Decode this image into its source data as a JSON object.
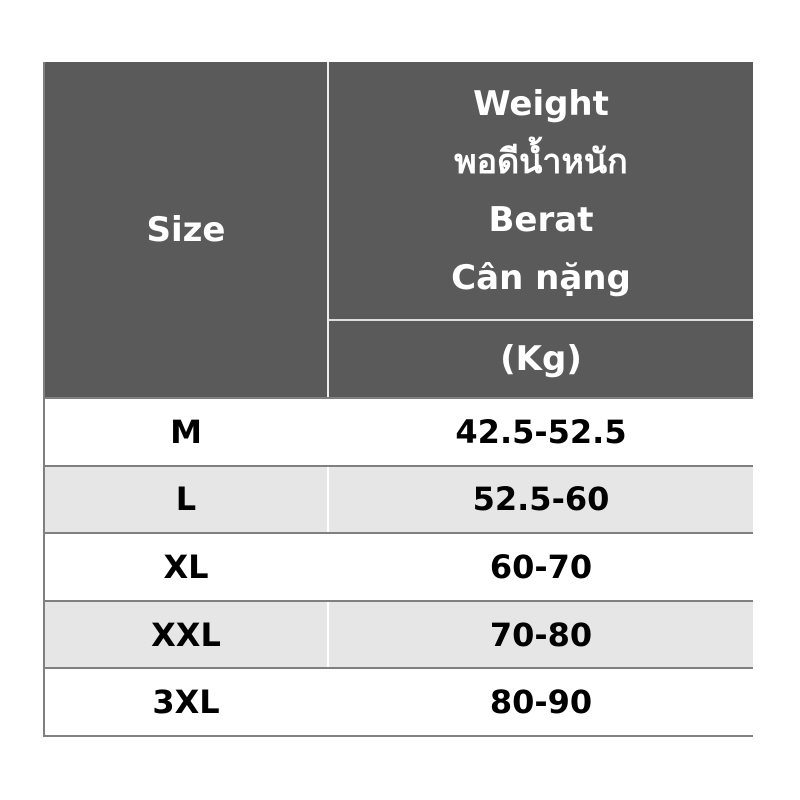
{
  "header": {
    "size_label": "Size",
    "weight_lines": [
      "Weight",
      "พอดีน้ำหนัก",
      "Berat",
      "Cân nặng"
    ],
    "unit": "(Kg)"
  },
  "rows": [
    {
      "size": "M",
      "weight": "42.5-52.5"
    },
    {
      "size": "L",
      "weight": "52.5-60"
    },
    {
      "size": "XL",
      "weight": "60-70"
    },
    {
      "size": "XXL",
      "weight": "70-80"
    },
    {
      "size": "3XL",
      "weight": "80-90"
    }
  ],
  "colors": {
    "header_bg": "#5a5a5a",
    "alt_row_bg": "#e6e6e6",
    "border": "#808080"
  }
}
